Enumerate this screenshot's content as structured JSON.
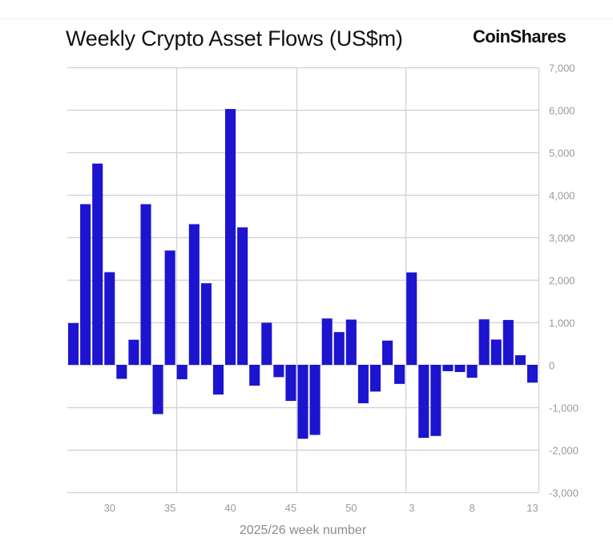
{
  "header": {
    "title": "Weekly Crypto Asset Flows (US$m)",
    "brand": "CoinShares"
  },
  "colors": {
    "bar": "#1C14CF",
    "grid": "#d0d0d0",
    "tick_text": "#9a9a9a"
  },
  "chart_data": {
    "type": "bar",
    "title": "Weekly Crypto Asset Flows (US$m)",
    "xlabel": "2025/26 week number",
    "ylabel": "",
    "ylim": [
      -3000,
      7000
    ],
    "yticks": [
      7000,
      6000,
      5000,
      4000,
      3000,
      2000,
      1000,
      0,
      -1000,
      -2000,
      -3000
    ],
    "ytick_labels": [
      "7,000",
      "6,000",
      "5,000",
      "4,000",
      "3,000",
      "2,000",
      "1,000",
      "0",
      "-1,000",
      "-2,000",
      "-3,000"
    ],
    "y_axis_side": "right",
    "grid": true,
    "legend": "none",
    "categories": [
      "27",
      "28",
      "29",
      "30",
      "31",
      "32",
      "33",
      "34",
      "35",
      "36",
      "37",
      "38",
      "39",
      "40",
      "41",
      "42",
      "43",
      "44",
      "45",
      "46",
      "47",
      "48",
      "49",
      "50",
      "51",
      "52",
      "1",
      "2",
      "3",
      "4",
      "5",
      "6",
      "7",
      "8",
      "9",
      "10",
      "11",
      "12",
      "13"
    ],
    "xtick_labels": [
      {
        "category": "30",
        "label": "30"
      },
      {
        "category": "35",
        "label": "35"
      },
      {
        "category": "40",
        "label": "40"
      },
      {
        "category": "45",
        "label": "45"
      },
      {
        "category": "50",
        "label": "50"
      },
      {
        "category": "3",
        "label": "3"
      },
      {
        "category": "8",
        "label": "8"
      },
      {
        "category": "13",
        "label": "13"
      }
    ],
    "vertical_grid_after_categories": [
      "35",
      "45",
      "2"
    ],
    "values": [
      980,
      3780,
      4735,
      2180,
      -330,
      590,
      3780,
      -1160,
      2690,
      -340,
      3310,
      1920,
      -700,
      6020,
      3235,
      -490,
      990,
      -290,
      -850,
      -1740,
      -1650,
      1090,
      770,
      1065,
      -905,
      -630,
      570,
      -450,
      2175,
      -1720,
      -1675,
      -150,
      -170,
      -305,
      1070,
      595,
      1055,
      225,
      -420
    ]
  }
}
